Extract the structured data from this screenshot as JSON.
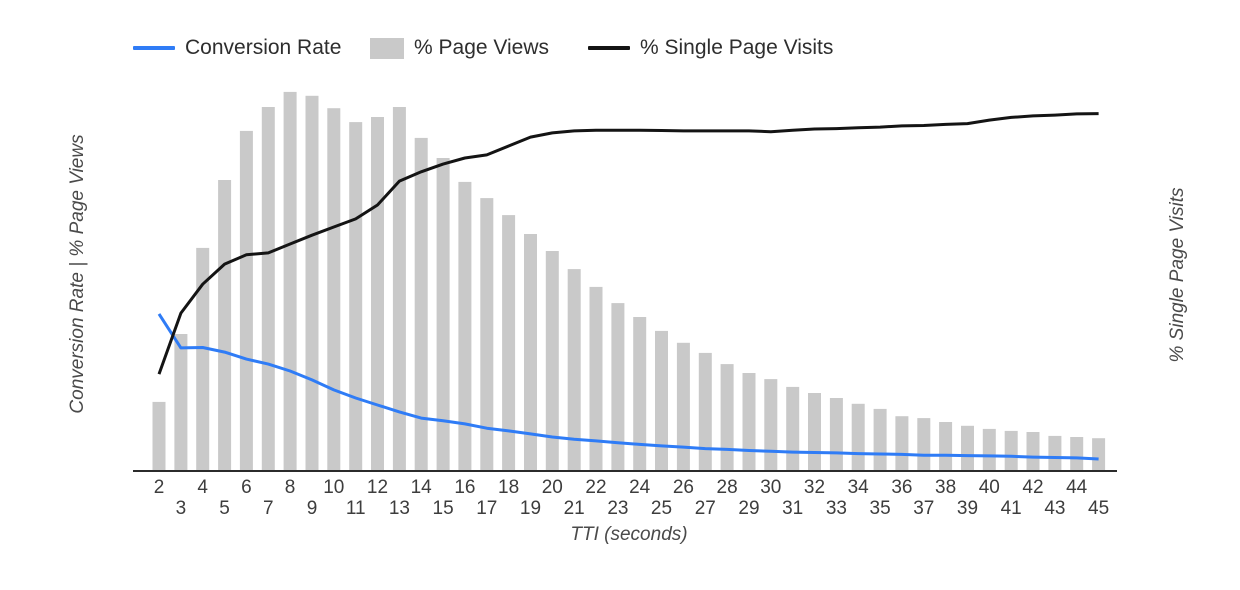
{
  "chart_data": {
    "type": "combo: bar + 2 lines",
    "x": [
      2,
      3,
      4,
      5,
      6,
      7,
      8,
      9,
      10,
      11,
      12,
      13,
      14,
      15,
      16,
      17,
      18,
      19,
      20,
      21,
      22,
      23,
      24,
      25,
      26,
      27,
      28,
      29,
      30,
      31,
      32,
      33,
      34,
      35,
      36,
      37,
      38,
      39,
      40,
      41,
      42,
      43,
      44,
      45
    ],
    "xlabel": "TTI (seconds)",
    "left_axis_label": "Conversion Rate | % Page Views",
    "right_axis_label": "% Single Page Visits",
    "units_note": "no numeric y-axis scale shown in the image; series values are relative heights in percent of the plot height",
    "legend_position": "top",
    "grid": "off",
    "series": [
      {
        "name": "Conversion Rate",
        "type": "line",
        "color": "#2f7cf6",
        "values": [
          40.7,
          31.9,
          32.0,
          30.8,
          29.0,
          27.7,
          25.9,
          23.6,
          21.0,
          18.9,
          17.1,
          15.3,
          13.7,
          13.0,
          12.2,
          11.1,
          10.4,
          9.6,
          8.8,
          8.2,
          7.8,
          7.3,
          6.9,
          6.5,
          6.2,
          5.8,
          5.6,
          5.3,
          5.1,
          4.9,
          4.8,
          4.7,
          4.5,
          4.4,
          4.3,
          4.1,
          4.1,
          4.0,
          3.9,
          3.8,
          3.6,
          3.5,
          3.4,
          3.1
        ]
      },
      {
        "name": "% Page Views",
        "type": "bar",
        "color": "#c9c9c9",
        "values": [
          17.9,
          35.5,
          57.8,
          75.4,
          88.1,
          94.3,
          98.2,
          97.2,
          94.0,
          90.4,
          91.7,
          94.3,
          86.3,
          81.1,
          74.9,
          70.7,
          66.3,
          61.4,
          57.0,
          52.3,
          47.7,
          43.5,
          39.9,
          36.3,
          33.2,
          30.6,
          27.7,
          25.4,
          23.8,
          21.8,
          20.2,
          18.9,
          17.4,
          16.1,
          14.2,
          13.7,
          12.7,
          11.7,
          10.9,
          10.4,
          10.1,
          9.1,
          8.8,
          8.5
        ]
      },
      {
        "name": "% Single Page Visits",
        "type": "line",
        "color": "#141414",
        "values": [
          25.1,
          40.9,
          48.4,
          53.6,
          56.0,
          56.5,
          58.8,
          61.1,
          63.2,
          65.3,
          68.9,
          75.1,
          77.5,
          79.5,
          81.1,
          81.9,
          84.2,
          86.5,
          87.6,
          88.1,
          88.3,
          88.3,
          88.3,
          88.2,
          88.1,
          88.1,
          88.1,
          88.1,
          87.9,
          88.3,
          88.6,
          88.7,
          88.9,
          89.1,
          89.4,
          89.5,
          89.8,
          90.0,
          90.9,
          91.6,
          92.0,
          92.2,
          92.5,
          92.6
        ]
      }
    ]
  }
}
